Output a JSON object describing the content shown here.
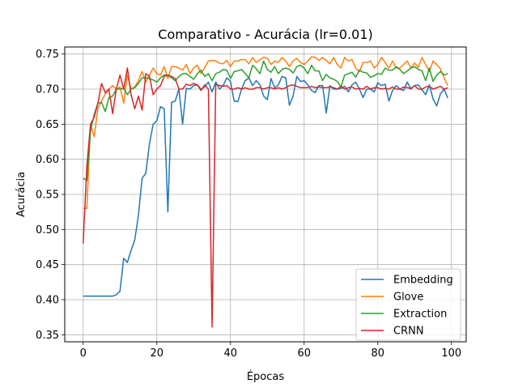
{
  "chart_data": {
    "type": "line",
    "title": "Comparativo - Acurácia (lr=0.01)",
    "xlabel": "Épocas",
    "ylabel": "Acurácia",
    "xlim": [
      -5,
      104
    ],
    "ylim": [
      0.34,
      0.76
    ],
    "xticks": [
      0,
      20,
      40,
      60,
      80,
      100
    ],
    "yticks": [
      0.35,
      0.4,
      0.45,
      0.5,
      0.55,
      0.6,
      0.65,
      0.7,
      0.75
    ],
    "xtick_labels": [
      "0",
      "20",
      "40",
      "60",
      "80",
      "100"
    ],
    "ytick_labels": [
      "0.35",
      "0.40",
      "0.45",
      "0.50",
      "0.55",
      "0.60",
      "0.65",
      "0.70",
      "0.75"
    ],
    "grid": true,
    "legend_position": "lower-right",
    "x": [
      0,
      1,
      2,
      3,
      4,
      5,
      6,
      7,
      8,
      9,
      10,
      11,
      12,
      13,
      14,
      15,
      16,
      17,
      18,
      19,
      20,
      21,
      22,
      23,
      24,
      25,
      26,
      27,
      28,
      29,
      30,
      31,
      32,
      33,
      34,
      35,
      36,
      37,
      38,
      39,
      40,
      41,
      42,
      43,
      44,
      45,
      46,
      47,
      48,
      49,
      50,
      51,
      52,
      53,
      54,
      55,
      56,
      57,
      58,
      59,
      60,
      61,
      62,
      63,
      64,
      65,
      66,
      67,
      68,
      69,
      70,
      71,
      72,
      73,
      74,
      75,
      76,
      77,
      78,
      79,
      80,
      81,
      82,
      83,
      84,
      85,
      86,
      87,
      88,
      89,
      90,
      91,
      92,
      93,
      94,
      95,
      96,
      97,
      98,
      99
    ],
    "series": [
      {
        "name": "Embedding",
        "color": "#1f77b4",
        "values": [
          0.405,
          0.405,
          0.405,
          0.405,
          0.405,
          0.405,
          0.405,
          0.405,
          0.405,
          0.407,
          0.412,
          0.459,
          0.453,
          0.47,
          0.485,
          0.52,
          0.573,
          0.58,
          0.622,
          0.65,
          0.655,
          0.675,
          0.672,
          0.525,
          0.681,
          0.683,
          0.7,
          0.65,
          0.701,
          0.7,
          0.705,
          0.706,
          0.7,
          0.703,
          0.71,
          0.696,
          0.71,
          0.7,
          0.705,
          0.716,
          0.711,
          0.683,
          0.682,
          0.7,
          0.712,
          0.716,
          0.705,
          0.712,
          0.706,
          0.69,
          0.685,
          0.715,
          0.702,
          0.706,
          0.718,
          0.716,
          0.677,
          0.69,
          0.718,
          0.711,
          0.712,
          0.706,
          0.698,
          0.695,
          0.705,
          0.705,
          0.666,
          0.705,
          0.7,
          0.7,
          0.701,
          0.704,
          0.696,
          0.706,
          0.71,
          0.7,
          0.688,
          0.7,
          0.7,
          0.696,
          0.709,
          0.705,
          0.707,
          0.683,
          0.698,
          0.705,
          0.7,
          0.698,
          0.71,
          0.7,
          0.705,
          0.706,
          0.699,
          0.692,
          0.706,
          0.686,
          0.676,
          0.693,
          0.7,
          0.687
        ]
      },
      {
        "name": "Glove",
        "color": "#ff7f0e",
        "values": [
          0.53,
          0.53,
          0.65,
          0.632,
          0.673,
          0.683,
          0.693,
          0.7,
          0.705,
          0.7,
          0.703,
          0.68,
          0.72,
          0.7,
          0.703,
          0.712,
          0.725,
          0.71,
          0.72,
          0.73,
          0.722,
          0.72,
          0.732,
          0.715,
          0.732,
          0.732,
          0.73,
          0.727,
          0.735,
          0.722,
          0.73,
          0.734,
          0.722,
          0.731,
          0.74,
          0.741,
          0.74,
          0.737,
          0.736,
          0.741,
          0.732,
          0.74,
          0.74,
          0.742,
          0.742,
          0.736,
          0.745,
          0.738,
          0.742,
          0.745,
          0.744,
          0.735,
          0.74,
          0.738,
          0.745,
          0.74,
          0.732,
          0.74,
          0.744,
          0.738,
          0.735,
          0.74,
          0.746,
          0.745,
          0.741,
          0.745,
          0.741,
          0.736,
          0.745,
          0.735,
          0.73,
          0.745,
          0.74,
          0.742,
          0.73,
          0.725,
          0.738,
          0.738,
          0.74,
          0.73,
          0.735,
          0.745,
          0.738,
          0.73,
          0.74,
          0.73,
          0.73,
          0.735,
          0.74,
          0.73,
          0.737,
          0.731,
          0.745,
          0.735,
          0.725,
          0.74,
          0.735,
          0.729,
          0.716,
          0.705
        ]
      },
      {
        "name": "Extraction",
        "color": "#2ca02c",
        "values": [
          0.573,
          0.57,
          0.64,
          0.664,
          0.68,
          0.681,
          0.668,
          0.688,
          0.69,
          0.7,
          0.7,
          0.701,
          0.692,
          0.7,
          0.702,
          0.708,
          0.716,
          0.716,
          0.715,
          0.713,
          0.71,
          0.716,
          0.72,
          0.72,
          0.716,
          0.712,
          0.718,
          0.722,
          0.722,
          0.718,
          0.714,
          0.722,
          0.727,
          0.718,
          0.722,
          0.712,
          0.722,
          0.724,
          0.728,
          0.727,
          0.715,
          0.725,
          0.726,
          0.728,
          0.722,
          0.716,
          0.734,
          0.729,
          0.722,
          0.74,
          0.728,
          0.724,
          0.732,
          0.722,
          0.728,
          0.73,
          0.728,
          0.723,
          0.732,
          0.734,
          0.73,
          0.722,
          0.734,
          0.726,
          0.726,
          0.712,
          0.721,
          0.716,
          0.714,
          0.711,
          0.703,
          0.72,
          0.722,
          0.724,
          0.717,
          0.727,
          0.724,
          0.723,
          0.717,
          0.719,
          0.722,
          0.721,
          0.73,
          0.727,
          0.727,
          0.732,
          0.728,
          0.722,
          0.726,
          0.73,
          0.732,
          0.728,
          0.726,
          0.712,
          0.73,
          0.711,
          0.72,
          0.725,
          0.72,
          0.722
        ]
      },
      {
        "name": "CRNN",
        "color": "#d62728",
        "values": [
          0.48,
          0.59,
          0.65,
          0.66,
          0.68,
          0.708,
          0.695,
          0.7,
          0.665,
          0.7,
          0.72,
          0.7,
          0.73,
          0.692,
          0.672,
          0.69,
          0.67,
          0.722,
          0.718,
          0.692,
          0.7,
          0.705,
          0.718,
          0.72,
          0.718,
          0.715,
          0.7,
          0.7,
          0.707,
          0.705,
          0.708,
          0.706,
          0.698,
          0.706,
          0.7,
          0.361,
          0.707,
          0.705,
          0.704,
          0.705,
          0.7,
          0.7,
          0.702,
          0.7,
          0.702,
          0.7,
          0.7,
          0.702,
          0.702,
          0.7,
          0.702,
          0.702,
          0.7,
          0.702,
          0.7,
          0.702,
          0.705,
          0.706,
          0.704,
          0.702,
          0.702,
          0.702,
          0.704,
          0.702,
          0.703,
          0.702,
          0.702,
          0.703,
          0.702,
          0.7,
          0.704,
          0.7,
          0.702,
          0.703,
          0.7,
          0.701,
          0.7,
          0.704,
          0.7,
          0.702,
          0.702,
          0.7,
          0.701,
          0.7,
          0.703,
          0.7,
          0.7,
          0.703,
          0.702,
          0.701,
          0.705,
          0.7,
          0.7,
          0.703,
          0.704,
          0.7,
          0.702,
          0.704,
          0.7,
          0.702
        ]
      }
    ]
  }
}
